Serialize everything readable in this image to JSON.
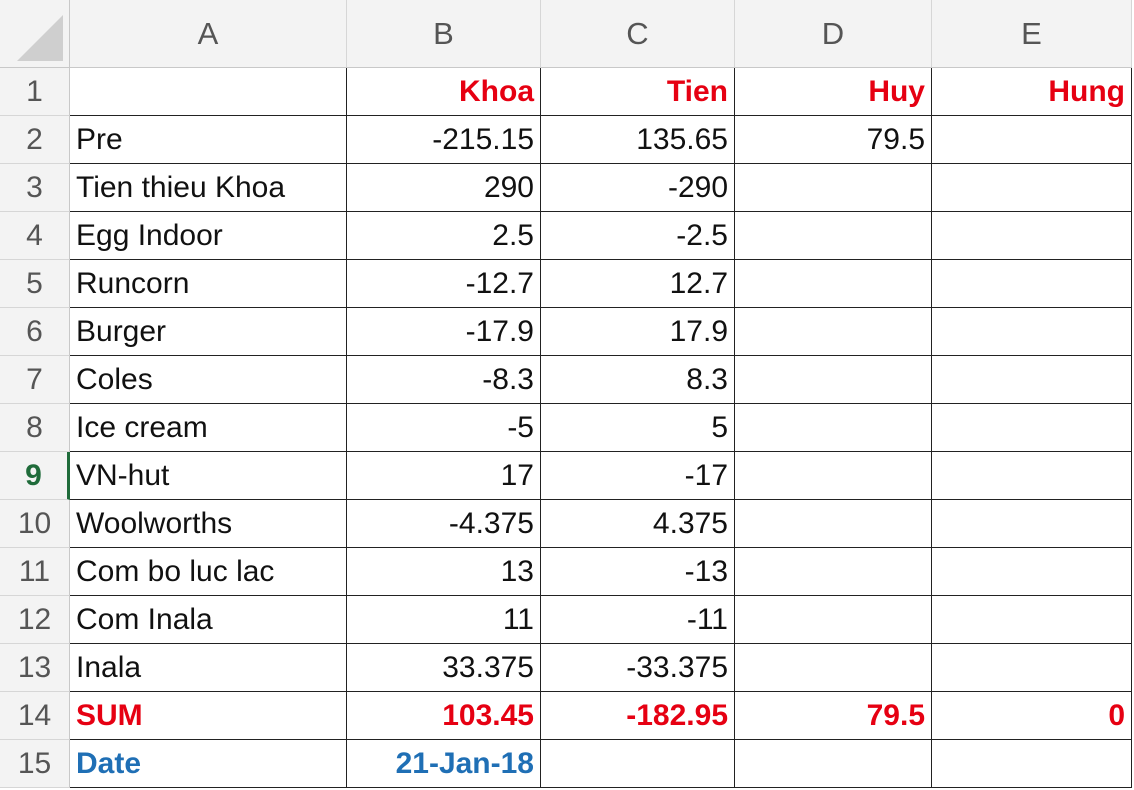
{
  "columns": [
    "A",
    "B",
    "C",
    "D",
    "E"
  ],
  "rows": [
    {
      "n": "1",
      "cells": [
        "",
        "Khoa",
        "Tien",
        "Huy",
        "Hung"
      ]
    },
    {
      "n": "2",
      "cells": [
        "Pre",
        "-215.15",
        "135.65",
        "79.5",
        ""
      ]
    },
    {
      "n": "3",
      "cells": [
        "Tien thieu Khoa",
        "290",
        "-290",
        "",
        ""
      ]
    },
    {
      "n": "4",
      "cells": [
        "Egg Indoor",
        "2.5",
        "-2.5",
        "",
        ""
      ]
    },
    {
      "n": "5",
      "cells": [
        "Runcorn",
        "-12.7",
        "12.7",
        "",
        ""
      ]
    },
    {
      "n": "6",
      "cells": [
        "Burger",
        "-17.9",
        "17.9",
        "",
        ""
      ]
    },
    {
      "n": "7",
      "cells": [
        "Coles",
        "-8.3",
        "8.3",
        "",
        ""
      ]
    },
    {
      "n": "8",
      "cells": [
        "Ice cream",
        "-5",
        "5",
        "",
        ""
      ]
    },
    {
      "n": "9",
      "cells": [
        "VN-hut",
        "17",
        "-17",
        "",
        ""
      ]
    },
    {
      "n": "10",
      "cells": [
        "Woolworths",
        "-4.375",
        "4.375",
        "",
        ""
      ]
    },
    {
      "n": "11",
      "cells": [
        "Com bo luc lac",
        "13",
        "-13",
        "",
        ""
      ]
    },
    {
      "n": "12",
      "cells": [
        "Com Inala",
        "11",
        "-11",
        "",
        ""
      ]
    },
    {
      "n": "13",
      "cells": [
        "Inala",
        "33.375",
        "-33.375",
        "",
        ""
      ]
    },
    {
      "n": "14",
      "cells": [
        "SUM",
        "103.45",
        "-182.95",
        "79.5",
        "0"
      ]
    },
    {
      "n": "15",
      "cells": [
        "Date",
        "21-Jan-18",
        "",
        "",
        ""
      ]
    }
  ],
  "active_row": "9",
  "colors": {
    "header_red": "#e60012",
    "date_blue": "#1f6fb5",
    "active_green": "#1f6b3a"
  }
}
